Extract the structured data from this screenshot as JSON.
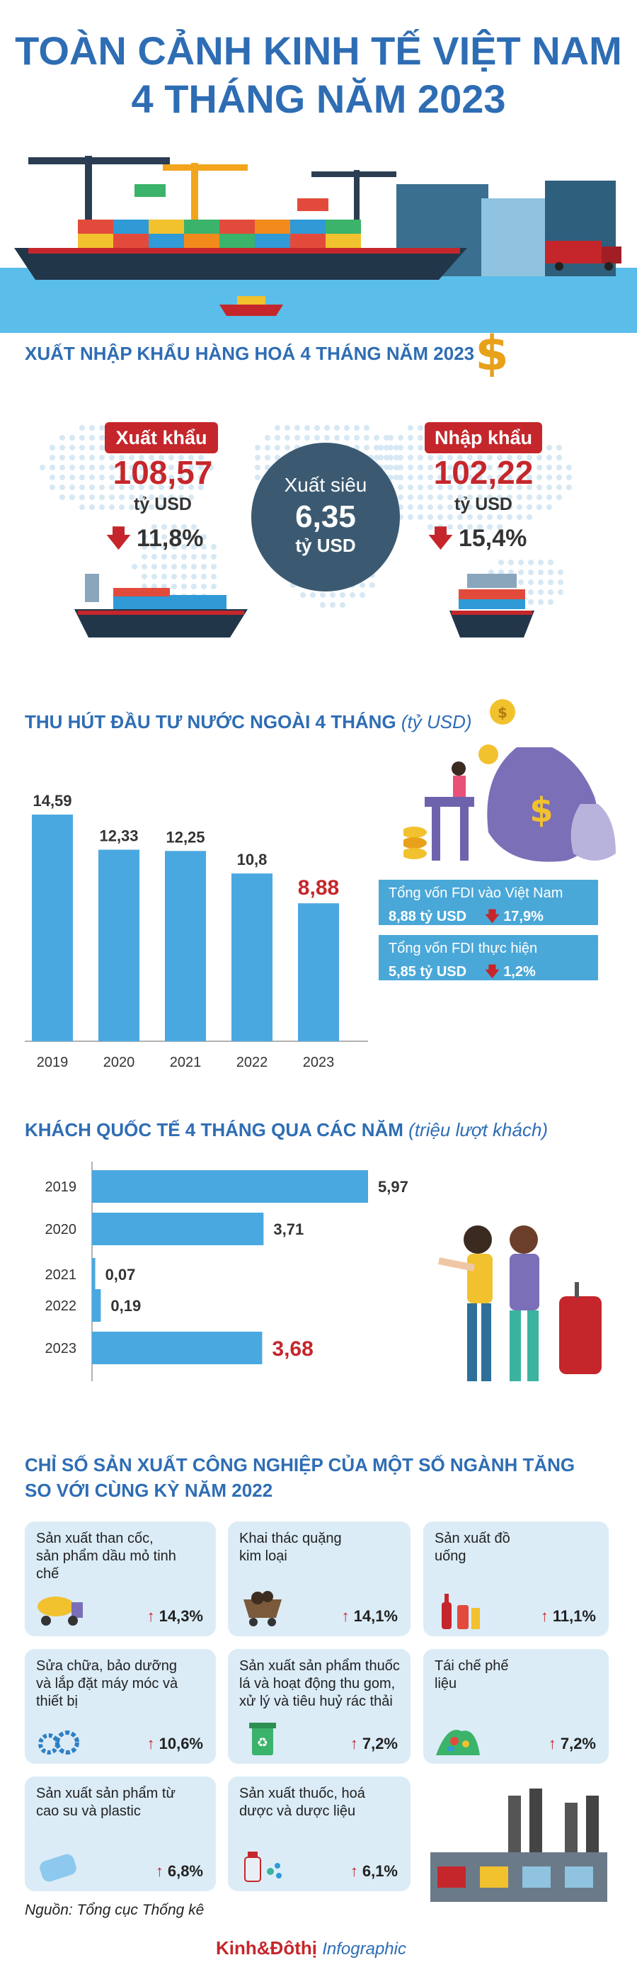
{
  "title": {
    "line1": "TOÀN CẢNH KINH TẾ VIỆT NAM",
    "line2": "4 THÁNG NĂM 2023"
  },
  "trade": {
    "heading": "XUẤT NHẬP KHẨU HÀNG HOÁ 4 THÁNG NĂM 2023",
    "export": {
      "label": "Xuất khẩu",
      "value": "108,57",
      "unit": "tỷ USD",
      "change": "11,8%"
    },
    "import": {
      "label": "Nhập khẩu",
      "value": "102,22",
      "unit": "tỷ USD",
      "change": "15,4%"
    },
    "surplus": {
      "label": "Xuất siêu",
      "value": "6,35",
      "unit": "tỷ USD"
    },
    "colors": {
      "accent": "#c5262b",
      "circle": "#3b5a72"
    }
  },
  "fdi": {
    "heading": "THU HÚT ĐẦU TƯ NƯỚC NGOÀI 4 THÁNG",
    "heading_unit": "(tỷ USD)",
    "box1": {
      "label": "Tổng vốn FDI vào Việt Nam",
      "value": "8,88 tỷ USD",
      "change": "17,9%"
    },
    "box2": {
      "label": "Tổng vốn FDI thực hiện",
      "value": "5,85 tỷ USD",
      "change": "1,2%"
    }
  },
  "visitors": {
    "heading": "KHÁCH QUỐC TẾ 4 THÁNG QUA CÁC NĂM",
    "heading_unit": "(triệu lượt khách)"
  },
  "industry": {
    "heading1": "CHỈ SỐ SẢN XUẤT CÔNG NGHIỆP CỦA MỘT SỐ NGÀNH TĂNG",
    "heading2": "SO VỚI CÙNG KỲ NĂM 2022",
    "items": [
      {
        "label": "Sản xuất than cốc, sản phẩm dầu mỏ tinh chế",
        "value": "14,3%",
        "icon": "tanker-truck-icon"
      },
      {
        "label": "Khai thác quặng kim loại",
        "value": "14,1%",
        "icon": "mine-cart-icon"
      },
      {
        "label": "Sản xuất đồ uống",
        "value": "11,1%",
        "icon": "drinks-icon"
      },
      {
        "label": "Sửa chữa, bảo dưỡng và lắp đặt máy móc và thiết bị",
        "value": "10,6%",
        "icon": "gears-icon"
      },
      {
        "label": "Sản xuất sản phẩm thuốc lá và hoạt động thu gom, xử lý và tiêu huỷ rác thải",
        "value": "7,2%",
        "icon": "recycle-bin-icon"
      },
      {
        "label": "Tái chế phế liệu",
        "value": "7,2%",
        "icon": "scrap-pile-icon"
      },
      {
        "label": "Sản xuất sản phẩm từ cao su và plastic",
        "value": "6,8%",
        "icon": "rubber-icon"
      },
      {
        "label": "Sản xuất thuốc, hoá dược và dược liệu",
        "value": "6,1%",
        "icon": "medicine-icon"
      }
    ]
  },
  "source": "Nguồn: Tổng cục Thống kê",
  "brand": {
    "name1": "Kinh",
    "amp": "&",
    "name2": "Đô",
    "name3": "thị",
    "suffix": "Infographic"
  },
  "chart_data": [
    {
      "type": "bar",
      "categories": [
        "2019",
        "2020",
        "2021",
        "2022",
        "2023"
      ],
      "values": [
        14.59,
        12.33,
        12.25,
        10.8,
        8.88
      ],
      "value_labels": [
        "14,59",
        "12,33",
        "12,25",
        "10,8",
        "8,88"
      ],
      "title": "THU HÚT ĐẦU TƯ NƯỚC NGOÀI 4 THÁNG",
      "ylim": [
        0,
        14.59
      ],
      "highlight_color": "#c5262b",
      "bar_color": "#4aa8e0"
    },
    {
      "type": "bar",
      "orientation": "horizontal",
      "categories": [
        "2019",
        "2020",
        "2021",
        "2022",
        "2023"
      ],
      "values": [
        5.97,
        3.71,
        0.07,
        0.19,
        3.68
      ],
      "value_labels": [
        "5,97",
        "3,71",
        "0,07",
        "0,19",
        "3,68"
      ],
      "title": "KHÁCH QUỐC TẾ 4 THÁNG QUA CÁC NĂM",
      "xlim": [
        0,
        5.97
      ],
      "highlight_color": "#c5262b",
      "bar_color": "#4aa8e0"
    }
  ]
}
